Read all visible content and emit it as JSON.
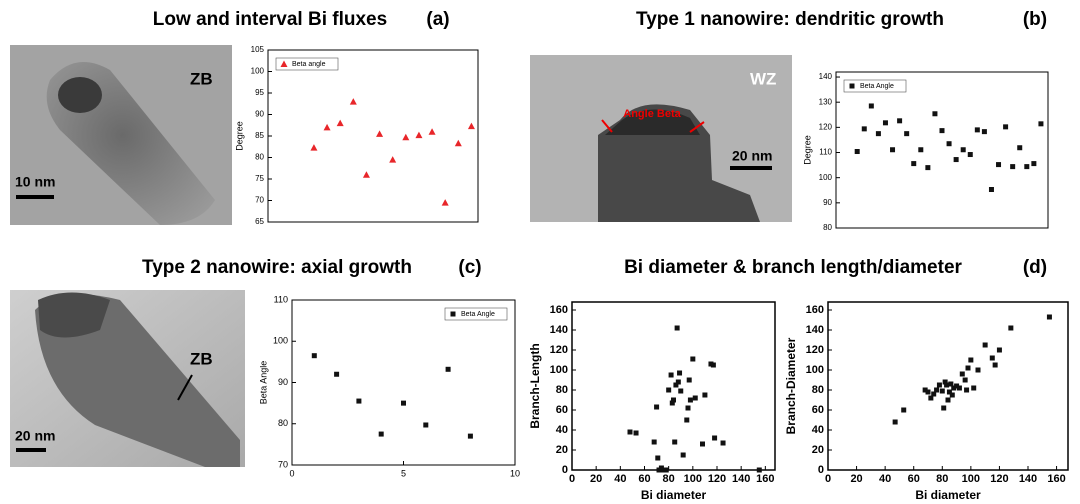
{
  "figure": {
    "panels": [
      {
        "title": "Low and interval Bi fluxes",
        "tag": "(a)",
        "image_labels": [
          "ZB",
          "10 nm"
        ]
      },
      {
        "title": "Type 1 nanowire: dendritic growth",
        "tag": "(b)",
        "image_labels": [
          "Angle Beta",
          "WZ",
          "20 nm"
        ]
      },
      {
        "title": "Type 2 nanowire: axial growth",
        "tag": "(c)",
        "image_labels": [
          "ZB",
          "20 nm"
        ]
      },
      {
        "title": "Bi diameter & branch length/diameter",
        "tag": "(d)"
      }
    ]
  },
  "chart_data": [
    {
      "type": "scatter",
      "ylabel": "Degree",
      "marker": "triangle",
      "legend": "upper left",
      "x": [
        3.5,
        4.5,
        5.5,
        6.5,
        7.5,
        8.5,
        9.5,
        10.5,
        11.5,
        12.5,
        13.5,
        14.5,
        15.5
      ],
      "series": [
        {
          "name": "Beta angle",
          "color": "#e8262a",
          "values": [
            82.3,
            87,
            88,
            93,
            76,
            85.5,
            79.5,
            84.7,
            85.2,
            86,
            69.5,
            83.3,
            87.3
          ]
        }
      ],
      "xlim": [
        0,
        16
      ],
      "ylim": [
        65,
        105
      ],
      "yticks": [
        65,
        70,
        75,
        80,
        85,
        90,
        95,
        100,
        105
      ]
    },
    {
      "type": "scatter",
      "ylabel": "Degree",
      "marker": "square",
      "legend": "upper left",
      "x": [
        3,
        4,
        5,
        6,
        7,
        8,
        9,
        10,
        11,
        12,
        13,
        14,
        15,
        16,
        17,
        18,
        19,
        20,
        21,
        22,
        23,
        24,
        25,
        26,
        27,
        28,
        29
      ],
      "series": [
        {
          "name": "Beta Angle",
          "color": "#111111",
          "values": [
            110.4,
            119.4,
            128.5,
            117.5,
            121.8,
            111.1,
            122.6,
            117.5,
            105.6,
            111.1,
            104,
            125.4,
            118.7,
            113.5,
            107.2,
            111.1,
            109.2,
            119,
            118.3,
            95.3,
            105.2,
            120.2,
            104.4,
            111.9,
            104.4,
            105.6,
            121.4
          ]
        }
      ],
      "xlim": [
        0,
        30
      ],
      "ylim": [
        80,
        142
      ],
      "yticks": [
        80,
        90,
        100,
        110,
        120,
        130,
        140
      ]
    },
    {
      "type": "scatter",
      "ylabel": "Beta Angle",
      "marker": "square",
      "legend": "upper right",
      "x": [
        1,
        2,
        3,
        4,
        5,
        6,
        7,
        8
      ],
      "series": [
        {
          "name": "Beta Angle",
          "color": "#111111",
          "values": [
            96.5,
            92,
            85.5,
            77.5,
            85,
            79.7,
            93.2,
            77
          ]
        }
      ],
      "xlim": [
        0,
        10
      ],
      "xticks": [
        0,
        5,
        10
      ],
      "ylim": [
        70,
        110
      ],
      "yticks": [
        70,
        80,
        90,
        100,
        110
      ]
    },
    {
      "type": "scatter",
      "xlabel": "Bi diameter",
      "ylabel": "Branch-Length",
      "marker": "square",
      "x": [
        48,
        53,
        68,
        70,
        71,
        72,
        74,
        75,
        78,
        80,
        82,
        83,
        84,
        85,
        86,
        87,
        88,
        89,
        90,
        92,
        95,
        96,
        97,
        98,
        100,
        102,
        108,
        110,
        115,
        117,
        118,
        125,
        155
      ],
      "series": [
        {
          "color": "#111111",
          "values": [
            38,
            37,
            28,
            63,
            12,
            0,
            2,
            0,
            0,
            80,
            95,
            67,
            70,
            28,
            85,
            142,
            88,
            97,
            79,
            15,
            50,
            62,
            90,
            70,
            111,
            72,
            26,
            75,
            106,
            105,
            32,
            27,
            0
          ]
        }
      ],
      "xlim": [
        0,
        168
      ],
      "xticks": [
        0,
        20,
        40,
        60,
        80,
        100,
        120,
        140,
        160
      ],
      "ylim": [
        0,
        168
      ],
      "yticks": [
        0,
        20,
        40,
        60,
        80,
        100,
        120,
        140,
        160
      ]
    },
    {
      "type": "scatter",
      "xlabel": "Bi diameter",
      "ylabel": "Branch-Diameter",
      "marker": "square",
      "x": [
        47,
        53,
        68,
        70,
        72,
        74,
        76,
        78,
        80,
        81,
        82,
        83,
        84,
        85,
        86,
        87,
        88,
        90,
        92,
        94,
        96,
        97,
        98,
        100,
        102,
        105,
        110,
        115,
        117,
        120,
        128,
        155
      ],
      "series": [
        {
          "color": "#111111",
          "values": [
            48,
            60,
            80,
            78,
            72,
            76,
            80,
            85,
            79,
            62,
            88,
            85,
            70,
            78,
            86,
            75,
            82,
            84,
            82,
            96,
            90,
            80,
            102,
            110,
            82,
            100,
            125,
            112,
            105,
            120,
            142,
            153
          ]
        }
      ],
      "xlim": [
        0,
        168
      ],
      "xticks": [
        0,
        20,
        40,
        60,
        80,
        100,
        120,
        140,
        160
      ],
      "ylim": [
        0,
        168
      ],
      "yticks": [
        0,
        20,
        40,
        60,
        80,
        100,
        120,
        140,
        160
      ]
    }
  ]
}
